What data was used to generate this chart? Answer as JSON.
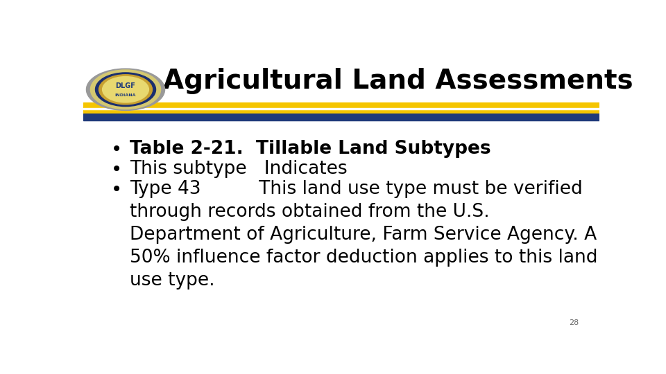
{
  "title": "Agricultural Land Assessments",
  "title_fontsize": 28,
  "title_color": "#000000",
  "background_color": "#ffffff",
  "bullet_points": [
    {
      "text": "Table 2-21.  Tillable Land Subtypes",
      "bold": true
    },
    {
      "text": "This subtype   Indicates",
      "bold": false
    },
    {
      "text": "Type 43          This land use type must be verified\nthrough records obtained from the U.S.\nDepartment of Agriculture, Farm Service Agency. A\n50% influence factor deduction applies to this land\nuse type.",
      "bold": false
    }
  ],
  "bullet_fontsize": 19,
  "header_stripe_yellow": "#F5C500",
  "header_stripe_blue": "#1F3A7A",
  "page_number": "28",
  "page_number_fontsize": 8,
  "logo_outer_color": "#aaaaaa",
  "logo_ring_color": "#d4c870",
  "logo_blue_color": "#1a2e6e",
  "logo_gold_color": "#c8a030",
  "logo_center_color": "#e8d870"
}
